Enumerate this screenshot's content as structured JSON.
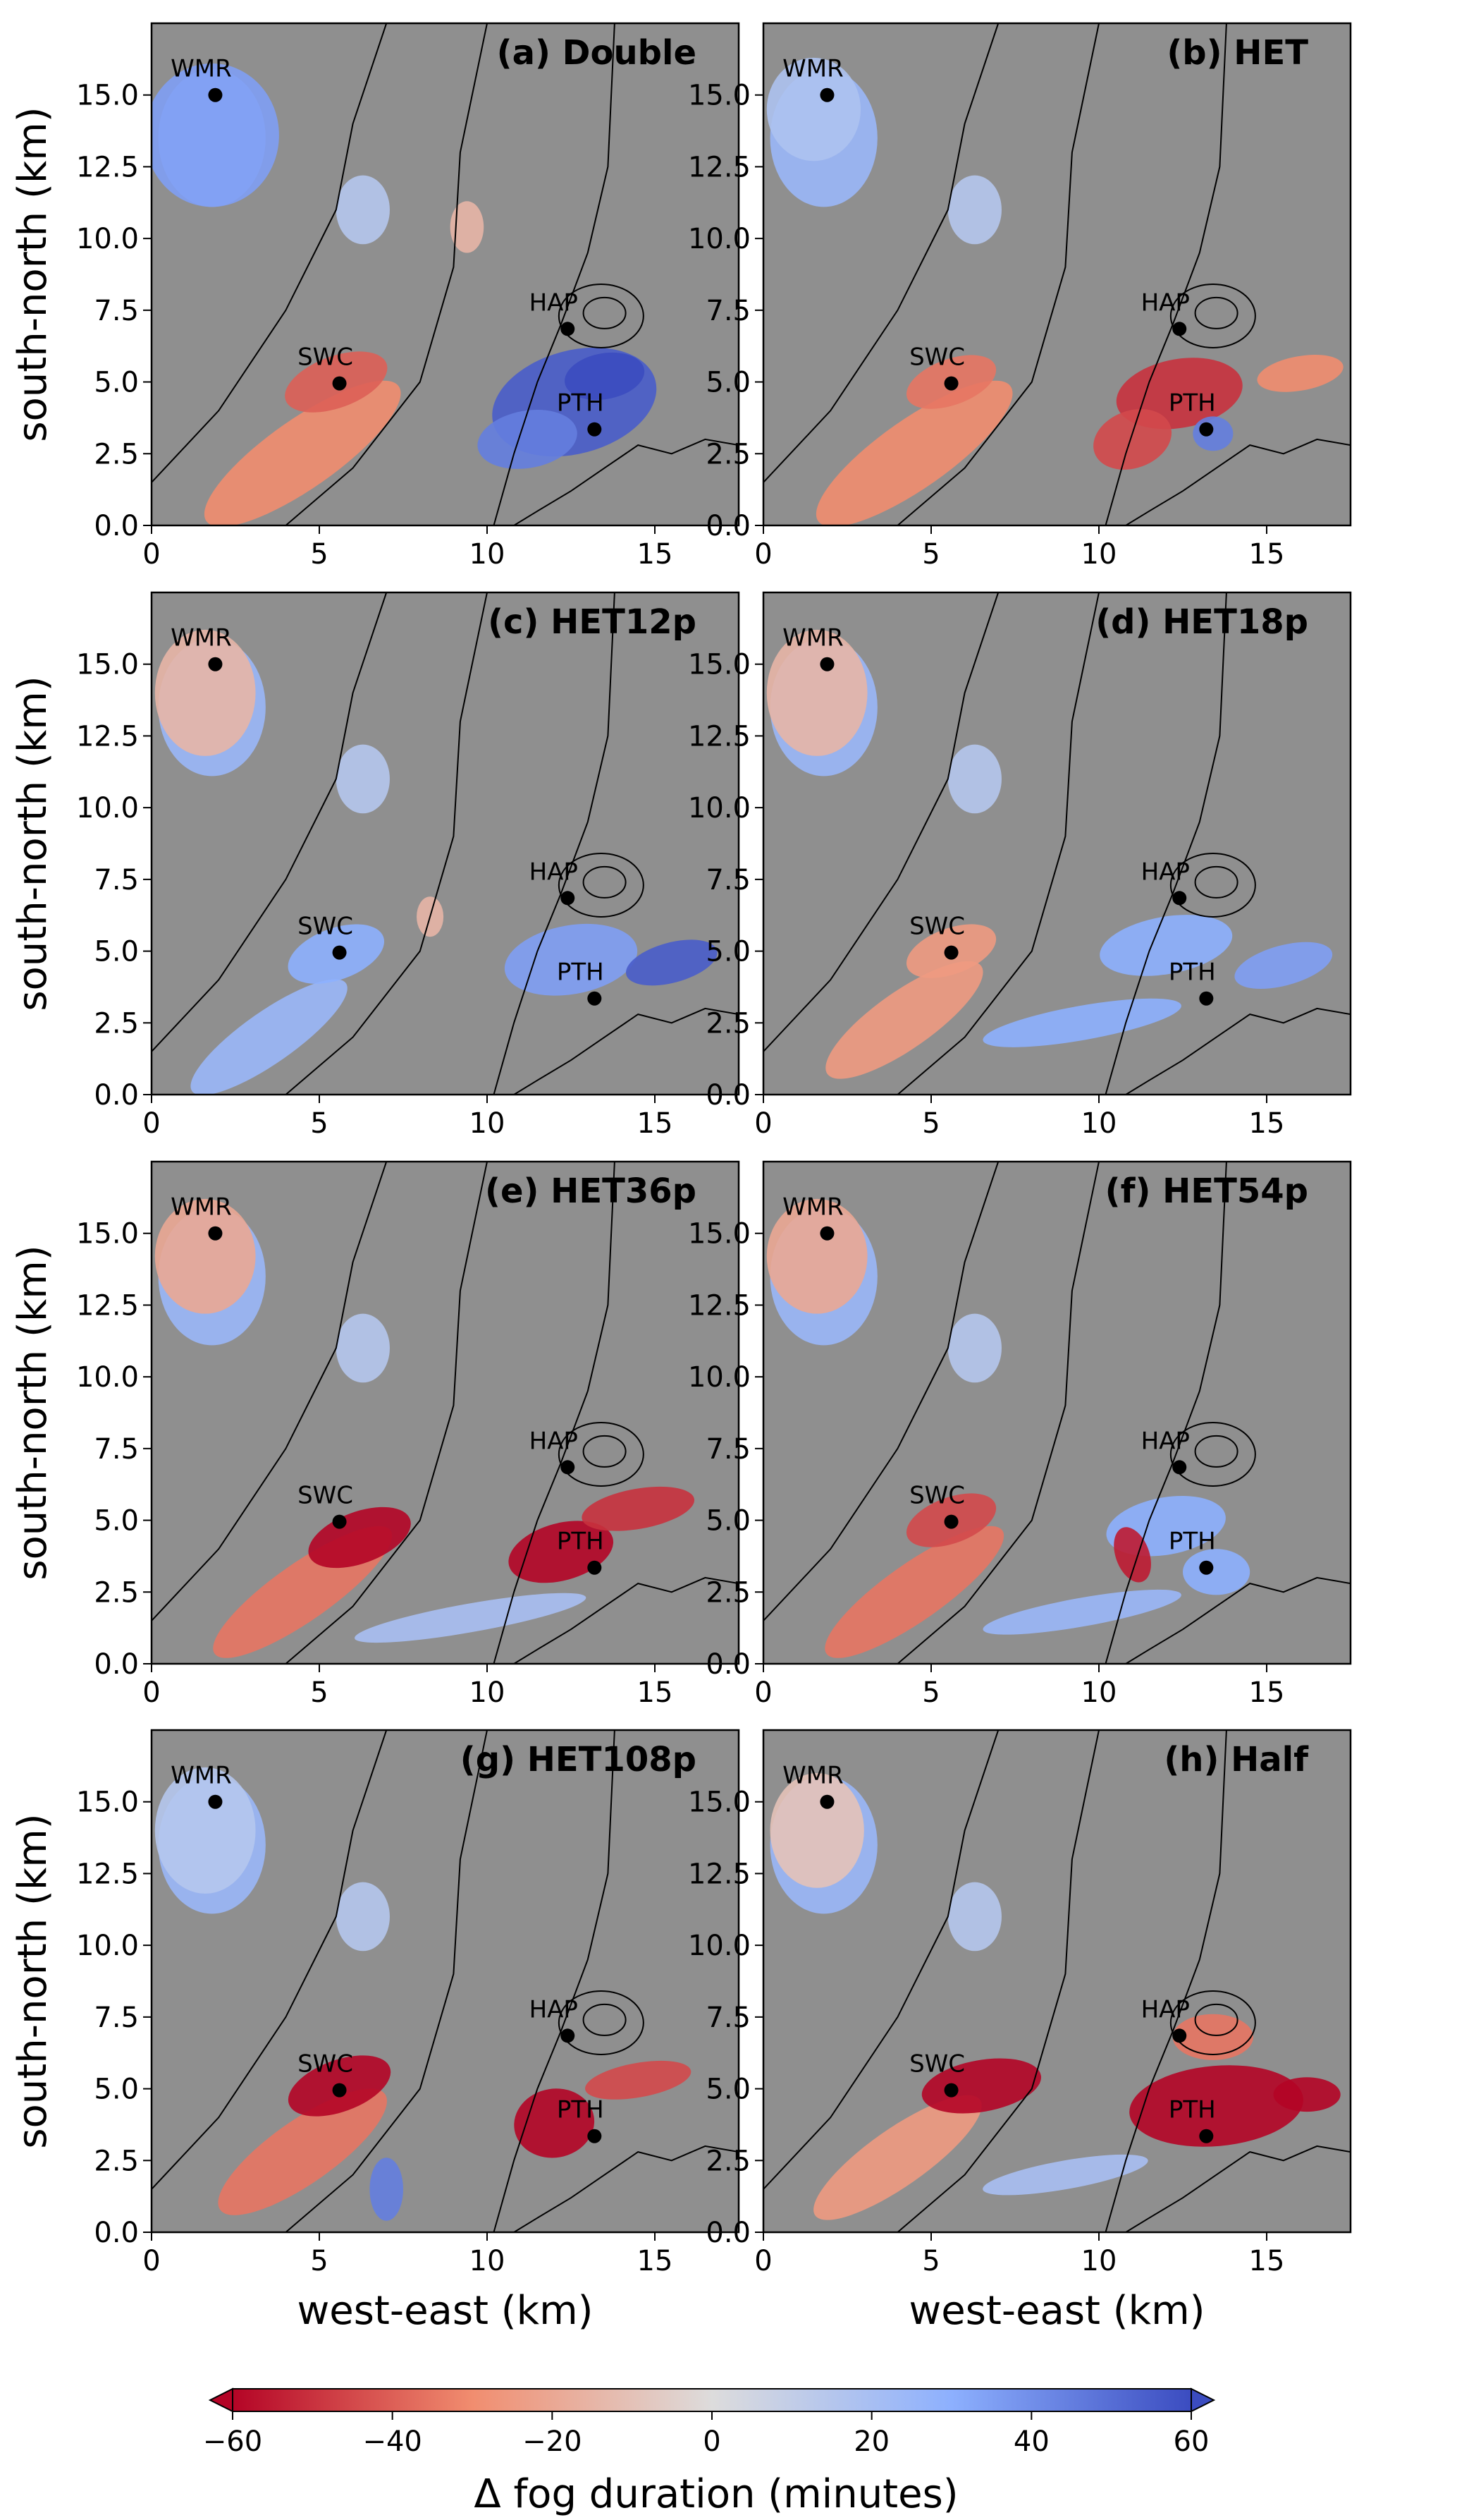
{
  "chart_data": [
    {
      "type": "heatmap",
      "title": "(a) Double",
      "xlabel": "",
      "ylabel": "south-north (km)",
      "xlim": [
        0,
        17.5
      ],
      "ylim": [
        0,
        17.5
      ]
    },
    {
      "type": "heatmap",
      "title": "(b) HET",
      "xlabel": "",
      "ylabel": "",
      "xlim": [
        0,
        17.5
      ],
      "ylim": [
        0,
        17.5
      ]
    },
    {
      "type": "heatmap",
      "title": "(c) HET12p",
      "xlabel": "",
      "ylabel": "south-north (km)",
      "xlim": [
        0,
        17.5
      ],
      "ylim": [
        0,
        17.5
      ]
    },
    {
      "type": "heatmap",
      "title": "(d) HET18p",
      "xlabel": "",
      "ylabel": "",
      "xlim": [
        0,
        17.5
      ],
      "ylim": [
        0,
        17.5
      ]
    },
    {
      "type": "heatmap",
      "title": "(e) HET36p",
      "xlabel": "",
      "ylabel": "south-north (km)",
      "xlim": [
        0,
        17.5
      ],
      "ylim": [
        0,
        17.5
      ]
    },
    {
      "type": "heatmap",
      "title": "(f) HET54p",
      "xlabel": "",
      "ylabel": "",
      "xlim": [
        0,
        17.5
      ],
      "ylim": [
        0,
        17.5
      ]
    },
    {
      "type": "heatmap",
      "title": "(g) HET108p",
      "xlabel": "west-east (km)",
      "ylabel": "south-north (km)",
      "xlim": [
        0,
        17.5
      ],
      "ylim": [
        0,
        17.5
      ]
    },
    {
      "type": "heatmap",
      "title": "(h) Half",
      "xlabel": "west-east (km)",
      "ylabel": "",
      "xlim": [
        0,
        17.5
      ],
      "ylim": [
        0,
        17.5
      ]
    }
  ],
  "axes": {
    "x_ticks": [
      "0",
      "5",
      "10",
      "15"
    ],
    "x_tick_values": [
      0,
      5,
      10,
      15
    ],
    "y_ticks": [
      "0.0",
      "2.5",
      "5.0",
      "7.5",
      "10.0",
      "12.5",
      "15.0"
    ],
    "y_tick_values": [
      0,
      2.5,
      5,
      7.5,
      10,
      12.5,
      15
    ]
  },
  "sites": [
    {
      "name": "WMR",
      "x": 1.9,
      "y": 15.0
    },
    {
      "name": "SWC",
      "x": 5.6,
      "y": 4.95
    },
    {
      "name": "HAP",
      "x": 12.4,
      "y": 6.85
    },
    {
      "name": "PTH",
      "x": 13.2,
      "y": 3.35
    }
  ],
  "colorbar": {
    "label": "Δ fog duration (minutes)",
    "ticks": [
      "−60",
      "−40",
      "−20",
      "0",
      "20",
      "40",
      "60"
    ],
    "tick_values": [
      -60,
      -40,
      -20,
      0,
      20,
      40,
      60
    ],
    "range": [
      -60,
      60
    ],
    "colormap": "coolwarm_r",
    "extend": "both"
  },
  "colors": {
    "background_gray": "#8f8f8f",
    "strong_red": "#b40426",
    "light_red": "#f4a283",
    "neutral": "#dddcdc",
    "light_blue": "#aac7fd",
    "strong_blue": "#3b4cc0"
  }
}
